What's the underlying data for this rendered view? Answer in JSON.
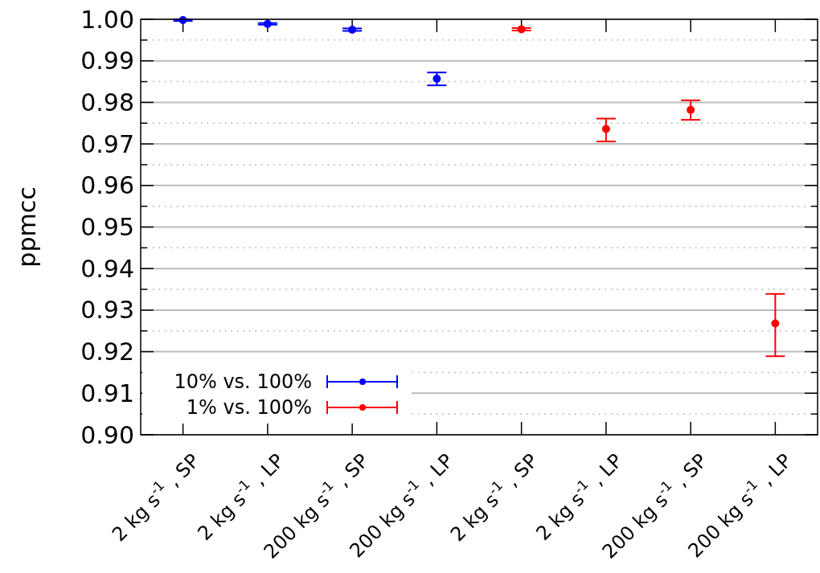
{
  "chart_data": {
    "type": "scatter",
    "ylabel": "ppmcc",
    "categories": [
      "2 kg s$^{-1}$ , SP",
      "2 kg s$^{-1}$ , LP",
      "200 kg s$^{-1}$ , SP",
      "200 kg s$^{-1}$ , LP",
      "2 kg s$^{-1}$ , SP",
      "2 kg s$^{-1}$ , LP",
      "200 kg s$^{-1}$ , SP",
      "200 kg s$^{-1}$ , LP"
    ],
    "series": [
      {
        "name": "10% vs. 100%",
        "color": "#0000ff",
        "values": [
          0.9998,
          0.9989,
          0.9975,
          0.9857,
          null,
          null,
          null,
          null
        ],
        "errors": [
          0.0002,
          0.0002,
          0.0003,
          [
            0.9841,
            0.9872
          ],
          null,
          null,
          null,
          null
        ]
      },
      {
        "name": "1% vs. 100%",
        "color": "#ff0000",
        "values": [
          null,
          null,
          null,
          null,
          0.9976,
          0.9736,
          0.9782,
          0.9268
        ],
        "errors": [
          null,
          null,
          null,
          null,
          0.0003,
          [
            0.9706,
            0.9761
          ],
          [
            0.9758,
            0.9805
          ],
          [
            0.9189,
            0.9339
          ]
        ]
      }
    ],
    "ylim": [
      0.9,
      1.0
    ],
    "yticks": [
      {
        "value": 0.9,
        "label": "0.90"
      },
      {
        "value": 0.905,
        "label": null
      },
      0.91,
      {
        "value": 0.915,
        "label": null
      },
      0.92,
      {
        "value": 0.925,
        "label": null
      },
      0.93,
      {
        "value": 0.935,
        "label": null
      },
      0.94,
      {
        "value": 0.945,
        "label": null
      },
      0.95,
      {
        "value": 0.955,
        "label": null
      },
      0.96,
      {
        "value": 0.965,
        "label": null
      },
      0.97,
      {
        "value": 0.975,
        "label": null
      },
      0.98,
      {
        "value": 0.985,
        "label": null
      },
      0.99,
      {
        "value": 0.995,
        "label": null
      },
      {
        "value": 1.0,
        "label": "1.00"
      }
    ],
    "grid": true,
    "legend": "bottom left",
    "marker": "circle"
  }
}
